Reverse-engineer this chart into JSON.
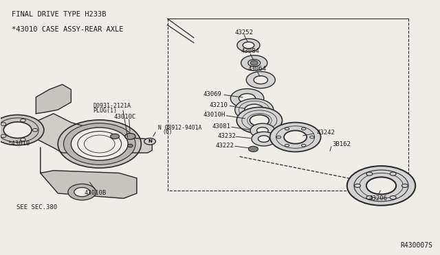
{
  "title_line1": "FINAL DRIVE TYPE H233B",
  "title_line2": "*43010 CASE ASSY-REAR AXLE",
  "bg_color": "#f0ede8",
  "line_color": "#2a2a2a",
  "text_color": "#1a1a1a",
  "ref_code": "R430007S"
}
